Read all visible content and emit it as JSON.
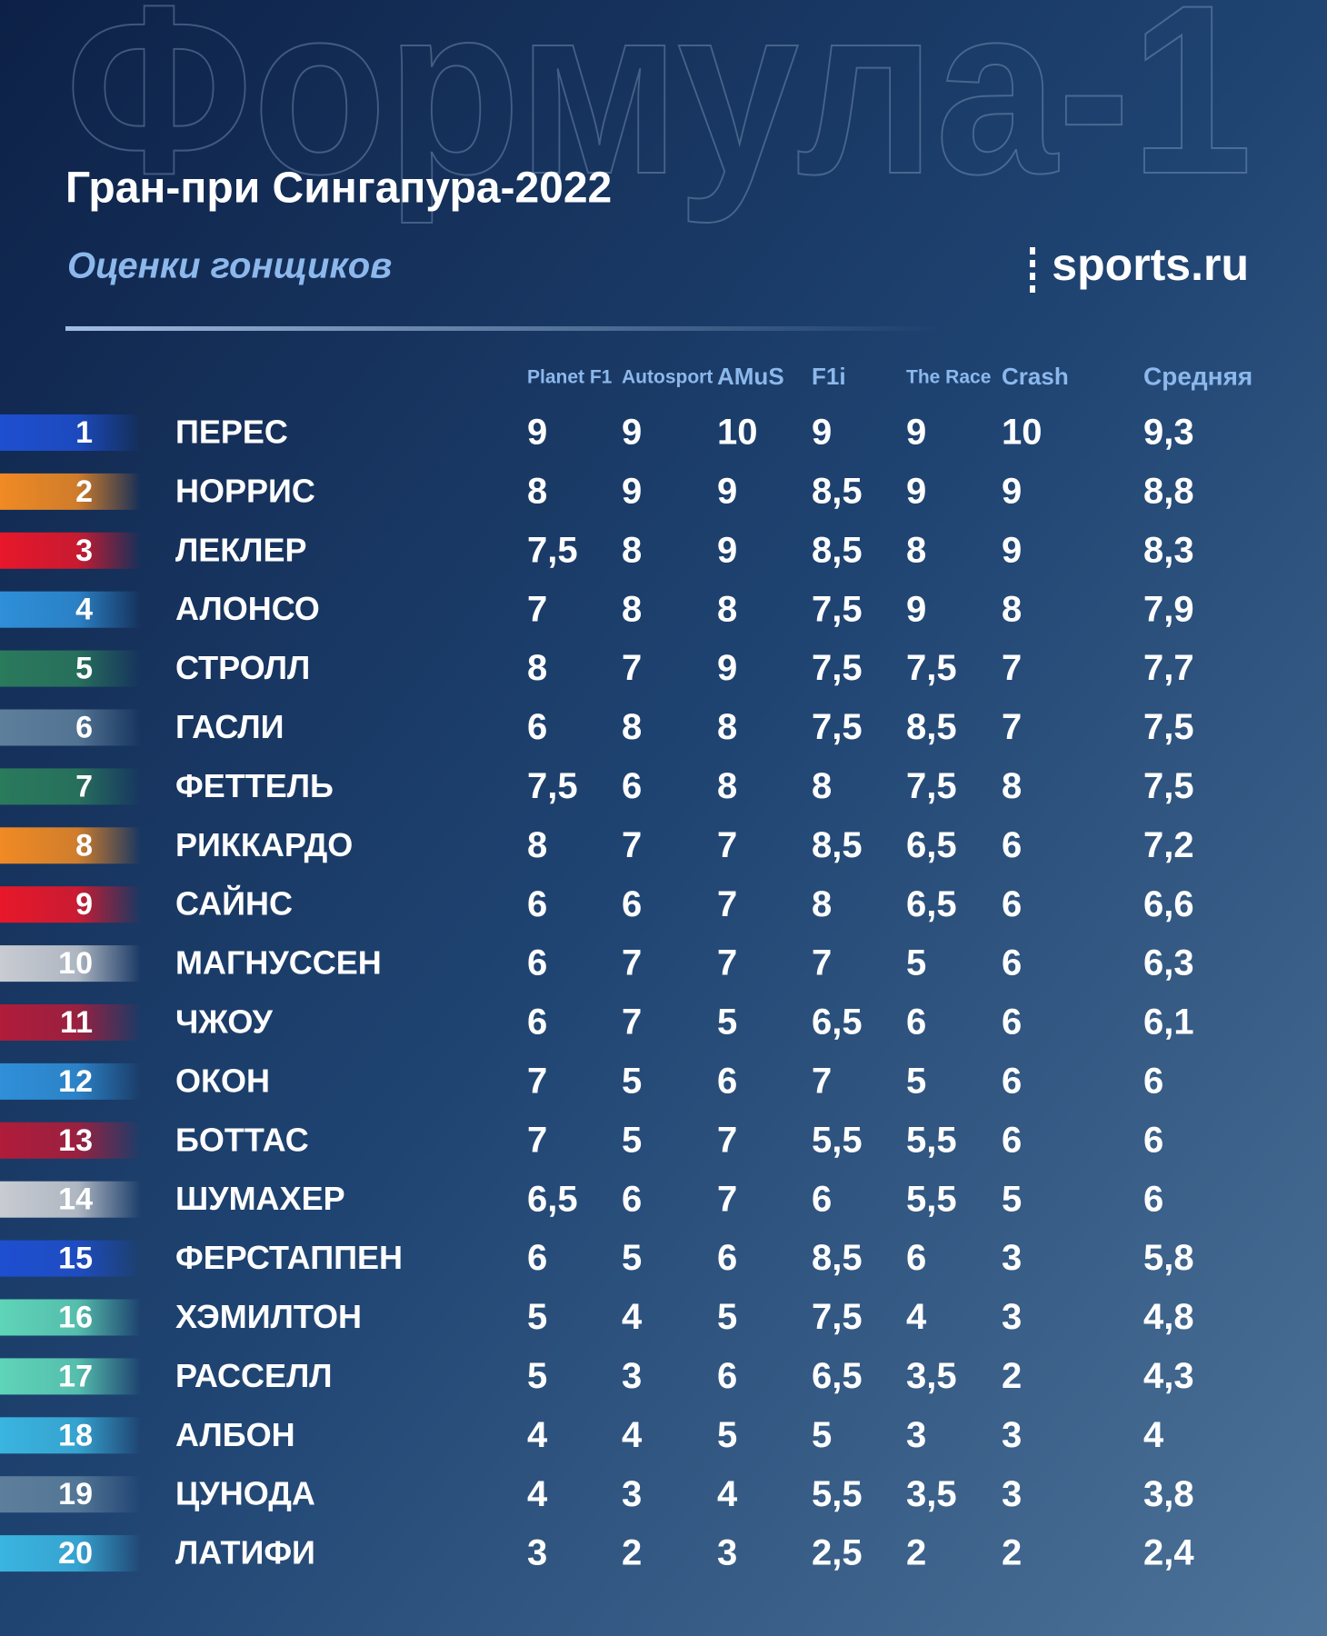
{
  "header": {
    "watermark": "Формула-1",
    "title": "Гран-при Сингапура-2022",
    "subtitle": "Оценки гонщиков",
    "logo": "sports.ru"
  },
  "table": {
    "columns": [
      "Planet F1",
      "Autosport",
      "AMuS",
      "F1i",
      "The Race",
      "Crash",
      "Средняя"
    ],
    "rows": [
      {
        "rank": "1",
        "name": "ПЕРЕС",
        "color": "#1e4fd0",
        "scores": [
          "9",
          "9",
          "10",
          "9",
          "9",
          "10",
          "9,3"
        ]
      },
      {
        "rank": "2",
        "name": "НОРРИС",
        "color": "#f08a24",
        "scores": [
          "8",
          "9",
          "9",
          "8,5",
          "9",
          "9",
          "8,8"
        ]
      },
      {
        "rank": "3",
        "name": "ЛЕКЛЕР",
        "color": "#e8172a",
        "scores": [
          "7,5",
          "8",
          "9",
          "8,5",
          "8",
          "9",
          "8,3"
        ]
      },
      {
        "rank": "4",
        "name": "АЛОНСО",
        "color": "#2f8fd8",
        "scores": [
          "7",
          "8",
          "8",
          "7,5",
          "9",
          "8",
          "7,9"
        ]
      },
      {
        "rank": "5",
        "name": "СТРОЛЛ",
        "color": "#2a7a5c",
        "scores": [
          "8",
          "7",
          "9",
          "7,5",
          "7,5",
          "7",
          "7,7"
        ]
      },
      {
        "rank": "6",
        "name": "ГАСЛИ",
        "color": "#5d7f9c",
        "scores": [
          "6",
          "8",
          "8",
          "7,5",
          "8,5",
          "7",
          "7,5"
        ]
      },
      {
        "rank": "7",
        "name": "ФЕТТЕЛЬ",
        "color": "#2a7a5c",
        "scores": [
          "7,5",
          "6",
          "8",
          "8",
          "7,5",
          "8",
          "7,5"
        ]
      },
      {
        "rank": "8",
        "name": "РИККАРДО",
        "color": "#f08a24",
        "scores": [
          "8",
          "7",
          "7",
          "8,5",
          "6,5",
          "6",
          "7,2"
        ]
      },
      {
        "rank": "9",
        "name": "САЙНС",
        "color": "#e8172a",
        "scores": [
          "6",
          "6",
          "7",
          "8",
          "6,5",
          "6",
          "6,6"
        ]
      },
      {
        "rank": "10",
        "name": "МАГНУССЕН",
        "color": "#c8ccd2",
        "scores": [
          "6",
          "7",
          "7",
          "7",
          "5",
          "6",
          "6,3"
        ]
      },
      {
        "rank": "11",
        "name": "ЧЖОУ",
        "color": "#b01c3a",
        "scores": [
          "6",
          "7",
          "5",
          "6,5",
          "6",
          "6",
          "6,1"
        ]
      },
      {
        "rank": "12",
        "name": "ОКОН",
        "color": "#2f8fd8",
        "scores": [
          "7",
          "5",
          "6",
          "7",
          "5",
          "6",
          "6"
        ]
      },
      {
        "rank": "13",
        "name": "БОТТАС",
        "color": "#b01c3a",
        "scores": [
          "7",
          "5",
          "7",
          "5,5",
          "5,5",
          "6",
          "6"
        ]
      },
      {
        "rank": "14",
        "name": "ШУМАХЕР",
        "color": "#c8ccd2",
        "scores": [
          "6,5",
          "6",
          "7",
          "6",
          "5,5",
          "5",
          "6"
        ]
      },
      {
        "rank": "15",
        "name": "ФЕРСТАППЕН",
        "color": "#1e4fd0",
        "scores": [
          "6",
          "5",
          "6",
          "8,5",
          "6",
          "3",
          "5,8"
        ]
      },
      {
        "rank": "16",
        "name": "ХЭМИЛТОН",
        "color": "#5fd4b8",
        "scores": [
          "5",
          "4",
          "5",
          "7,5",
          "4",
          "3",
          "4,8"
        ]
      },
      {
        "rank": "17",
        "name": "РАССЕЛЛ",
        "color": "#5fd4b8",
        "scores": [
          "5",
          "3",
          "6",
          "6,5",
          "3,5",
          "2",
          "4,3"
        ]
      },
      {
        "rank": "18",
        "name": "АЛБОН",
        "color": "#3ab4e0",
        "scores": [
          "4",
          "4",
          "5",
          "5",
          "3",
          "3",
          "4"
        ]
      },
      {
        "rank": "19",
        "name": "ЦУНОДА",
        "color": "#5d7f9c",
        "scores": [
          "4",
          "3",
          "4",
          "5,5",
          "3,5",
          "3",
          "3,8"
        ]
      },
      {
        "rank": "20",
        "name": "ЛАТИФИ",
        "color": "#3ab4e0",
        "scores": [
          "3",
          "2",
          "3",
          "2,5",
          "2",
          "2",
          "2,4"
        ]
      }
    ]
  }
}
